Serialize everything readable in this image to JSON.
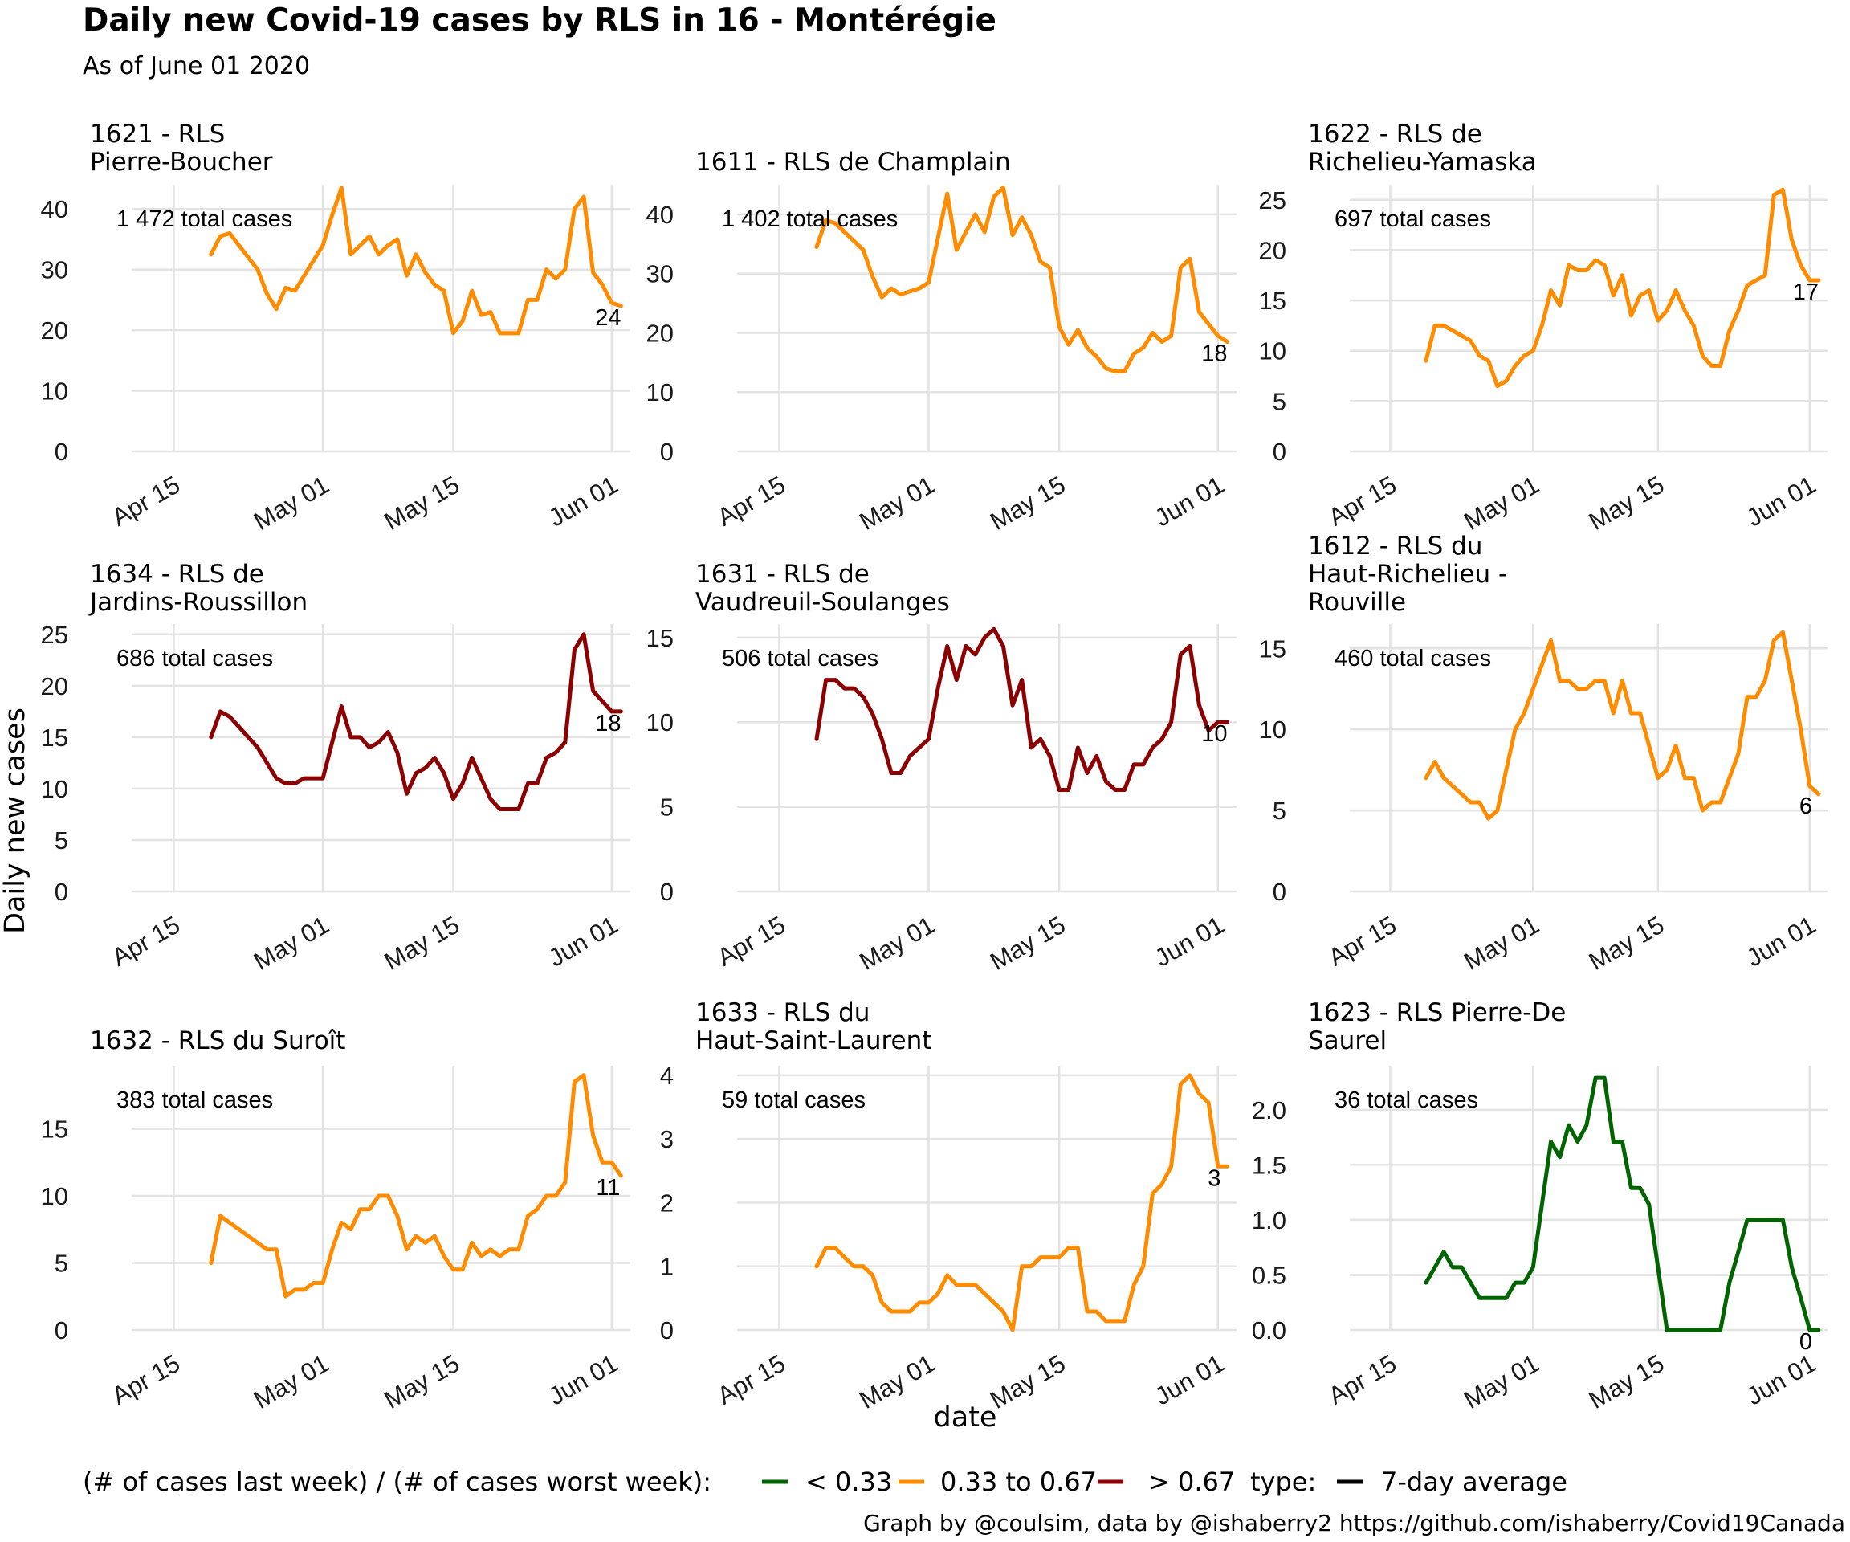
{
  "title": "Daily new Covid-19 cases by RLS in 16 - Montérégie",
  "subtitle": "As of June 01 2020",
  "ylabel": "Daily new cases",
  "xlabel": "date",
  "caption": "Graph by @coulsim, data by @ishaberry2 https://github.com/ishaberry/Covid19Canada",
  "legend": {
    "ratio_title": "(# of cases last week) / (# of cases worst week):",
    "items": [
      {
        "label": "< 0.33",
        "color": "#006400"
      },
      {
        "label": "0.33 to 0.67",
        "color": "#FF8C00"
      },
      {
        "label": "> 0.67",
        "color": "#8B0000"
      }
    ],
    "type_title": "type:",
    "type_items": [
      {
        "label": "7-day average",
        "color": "#000000"
      }
    ]
  },
  "chart_data": [
    {
      "type": "line",
      "panel_title": [
        "1621 - RLS",
        "Pierre-Boucher"
      ],
      "color": "#FF8C00",
      "total_label": "1 472 total cases",
      "end_label": "24",
      "x_start": "2020-04-19",
      "x_ticks": [
        "Apr 15",
        "May 01",
        "May 15",
        "Jun 01"
      ],
      "x_range": [
        "2020-04-11",
        "2020-06-03"
      ],
      "ylim": [
        0,
        44
      ],
      "y_ticks": [
        0,
        10,
        20,
        30,
        40
      ],
      "values": [
        32.5,
        35.5,
        36,
        34,
        32,
        30,
        26,
        23.5,
        27,
        26.5,
        29,
        31.5,
        34,
        39,
        43.5,
        32.5,
        34,
        35.5,
        32.5,
        34,
        35,
        29,
        32.5,
        29.5,
        27.5,
        26.5,
        19.5,
        21.5,
        26.5,
        22.5,
        23,
        19.5,
        19.5,
        19.5,
        25,
        25,
        30,
        28.5,
        30,
        40,
        42,
        29.5,
        27.5,
        24.5,
        24
      ]
    },
    {
      "type": "line",
      "panel_title": [
        "1611 - RLS de Champlain"
      ],
      "color": "#FF8C00",
      "total_label": "1 402 total cases",
      "end_label": "18",
      "x_start": "2020-04-19",
      "x_ticks": [
        "Apr 15",
        "May 01",
        "May 15",
        "Jun 01"
      ],
      "x_range": [
        "2020-04-11",
        "2020-06-03"
      ],
      "ylim": [
        0,
        45
      ],
      "y_ticks": [
        0,
        10,
        20,
        30,
        40
      ],
      "values": [
        34.5,
        39,
        38.5,
        37,
        35.5,
        34,
        29.5,
        26,
        27.5,
        26.5,
        27,
        27.5,
        28.5,
        36,
        43.5,
        34,
        37,
        40,
        37,
        43,
        44.5,
        36.5,
        39.5,
        36.5,
        32,
        31,
        21,
        18,
        20.5,
        17.5,
        16,
        14,
        13.5,
        13.5,
        16.5,
        17.5,
        20,
        18.5,
        19.5,
        31,
        32.5,
        23.5,
        21.5,
        19.5,
        18.5
      ]
    },
    {
      "type": "line",
      "panel_title": [
        "1622 - RLS de",
        "Richelieu-Yamaska"
      ],
      "color": "#FF8C00",
      "total_label": "697 total cases",
      "end_label": "17",
      "x_start": "2020-04-19",
      "x_ticks": [
        "Apr 15",
        "May 01",
        "May 15",
        "Jun 01"
      ],
      "x_range": [
        "2020-04-11",
        "2020-06-03"
      ],
      "ylim": [
        0,
        26.5
      ],
      "y_ticks": [
        0,
        5,
        10,
        15,
        20,
        25
      ],
      "values": [
        9,
        12.5,
        12.5,
        12,
        11.5,
        11,
        9.5,
        9,
        6.5,
        7,
        8.5,
        9.5,
        10,
        12.5,
        16,
        14.5,
        18.5,
        18,
        18,
        19,
        18.5,
        15.5,
        17.5,
        13.5,
        15.5,
        16,
        13,
        14,
        16,
        14,
        12.5,
        9.5,
        8.5,
        8.5,
        12,
        14,
        16.5,
        17,
        17.5,
        25.5,
        26,
        21,
        18.5,
        17,
        17
      ]
    },
    {
      "type": "line",
      "panel_title": [
        "1634 - RLS de",
        "Jardins-Roussillon"
      ],
      "color": "#8B0000",
      "total_label": "686 total cases",
      "end_label": "18",
      "x_start": "2020-04-19",
      "x_ticks": [
        "Apr 15",
        "May 01",
        "May 15",
        "Jun 01"
      ],
      "x_range": [
        "2020-04-11",
        "2020-06-03"
      ],
      "ylim": [
        0,
        26
      ],
      "y_ticks": [
        0,
        5,
        10,
        15,
        20,
        25
      ],
      "values": [
        15,
        17.5,
        17,
        16,
        15,
        14,
        12.5,
        11,
        10.5,
        10.5,
        11,
        11,
        11,
        14.5,
        18,
        15,
        15,
        14,
        14.5,
        15.5,
        13.5,
        9.5,
        11.5,
        12,
        13,
        11.5,
        9,
        10.5,
        13,
        11,
        9,
        8,
        8,
        8,
        10.5,
        10.5,
        13,
        13.5,
        14.5,
        23.5,
        25,
        19.5,
        18.5,
        17.5,
        17.5
      ]
    },
    {
      "type": "line",
      "panel_title": [
        "1631 - RLS de",
        "Vaudreuil-Soulanges"
      ],
      "color": "#8B0000",
      "total_label": "506 total cases",
      "end_label": "10",
      "x_start": "2020-04-19",
      "x_ticks": [
        "Apr 15",
        "May 01",
        "May 15",
        "Jun 01"
      ],
      "x_range": [
        "2020-04-11",
        "2020-06-03"
      ],
      "ylim": [
        0,
        15.8
      ],
      "y_ticks": [
        0,
        5,
        10,
        15
      ],
      "values": [
        9,
        12.5,
        12.5,
        12,
        12,
        11.5,
        10.5,
        9,
        7,
        7,
        8,
        8.5,
        9,
        12,
        14.5,
        12.5,
        14.5,
        14,
        15,
        15.5,
        14.5,
        11,
        12.5,
        8.5,
        9,
        8,
        6,
        6,
        8.5,
        7,
        8,
        6.5,
        6,
        6,
        7.5,
        7.5,
        8.5,
        9,
        10,
        14,
        14.5,
        11,
        9.5,
        10,
        10
      ]
    },
    {
      "type": "line",
      "panel_title": [
        "1612 - RLS du",
        "Haut-Richelieu -",
        "Rouville"
      ],
      "color": "#FF8C00",
      "total_label": "460 total cases",
      "end_label": "6",
      "x_start": "2020-04-19",
      "x_ticks": [
        "Apr 15",
        "May 01",
        "May 15",
        "Jun 01"
      ],
      "x_range": [
        "2020-04-11",
        "2020-06-03"
      ],
      "ylim": [
        0,
        16.5
      ],
      "y_ticks": [
        0,
        5,
        10,
        15
      ],
      "values": [
        7,
        8,
        7,
        6.5,
        6,
        5.5,
        5.5,
        4.5,
        5,
        7.5,
        10,
        11,
        12.5,
        14,
        15.5,
        13,
        13,
        12.5,
        12.5,
        13,
        13,
        11,
        13,
        11,
        11,
        9,
        7,
        7.5,
        9,
        7,
        7,
        5,
        5.5,
        5.5,
        7,
        8.5,
        12,
        12,
        13,
        15.5,
        16,
        13,
        10,
        6.5,
        6
      ]
    },
    {
      "type": "line",
      "panel_title": [
        "1632 - RLS du Suroît"
      ],
      "color": "#FF8C00",
      "total_label": "383 total cases",
      "end_label": "11",
      "x_start": "2020-04-19",
      "x_ticks": [
        "Apr 15",
        "May 01",
        "May 15",
        "Jun 01"
      ],
      "x_range": [
        "2020-04-11",
        "2020-06-03"
      ],
      "ylim": [
        0,
        19.7
      ],
      "y_ticks": [
        0,
        5,
        10,
        15
      ],
      "values": [
        5,
        8.5,
        8,
        7.5,
        7,
        6.5,
        6,
        6,
        2.5,
        3,
        3,
        3.5,
        3.5,
        6,
        8,
        7.5,
        9,
        9,
        10,
        10,
        8.5,
        6,
        7,
        6.5,
        7,
        5.5,
        4.5,
        4.5,
        6.5,
        5.5,
        6,
        5.5,
        6,
        6,
        8.5,
        9,
        10,
        10,
        11,
        18.5,
        19,
        14.5,
        12.5,
        12.5,
        11.5
      ]
    },
    {
      "type": "line",
      "panel_title": [
        "1633 - RLS du",
        "Haut-Saint-Laurent"
      ],
      "color": "#FF8C00",
      "total_label": "59 total cases",
      "end_label": "3",
      "x_start": "2020-04-19",
      "x_ticks": [
        "Apr 15",
        "May 01",
        "May 15",
        "Jun 01"
      ],
      "x_range": [
        "2020-04-11",
        "2020-06-03"
      ],
      "ylim": [
        0,
        4.15
      ],
      "y_ticks": [
        0,
        1,
        2,
        3,
        4
      ],
      "values": [
        1,
        1.29,
        1.29,
        1.14,
        1,
        1,
        0.86,
        0.43,
        0.29,
        0.29,
        0.29,
        0.43,
        0.43,
        0.57,
        0.86,
        0.71,
        0.71,
        0.71,
        0.57,
        0.43,
        0.29,
        0,
        1,
        1,
        1.14,
        1.14,
        1.14,
        1.29,
        1.29,
        0.29,
        0.29,
        0.14,
        0.14,
        0.14,
        0.71,
        1,
        2.14,
        2.29,
        2.57,
        3.86,
        4,
        3.71,
        3.57,
        2.57,
        2.57
      ]
    },
    {
      "type": "line",
      "panel_title": [
        "1623 - RLS Pierre-De",
        "Saurel"
      ],
      "color": "#006400",
      "total_label": "36 total cases",
      "end_label": "0",
      "x_start": "2020-04-19",
      "x_ticks": [
        "Apr 15",
        "May 01",
        "May 15",
        "Jun 01"
      ],
      "x_range": [
        "2020-04-11",
        "2020-06-03"
      ],
      "ylim": [
        0,
        2.4
      ],
      "y_ticks": [
        0.0,
        0.5,
        1.0,
        1.5,
        2.0
      ],
      "values": [
        0.43,
        0.57,
        0.71,
        0.57,
        0.57,
        0.43,
        0.29,
        0.29,
        0.29,
        0.29,
        0.43,
        0.43,
        0.57,
        1.14,
        1.71,
        1.57,
        1.86,
        1.71,
        1.86,
        2.29,
        2.29,
        1.71,
        1.71,
        1.29,
        1.29,
        1.14,
        0.57,
        0,
        0,
        0,
        0,
        0,
        0,
        0,
        0.43,
        0.71,
        1,
        1,
        1,
        1,
        1,
        0.57,
        0.29,
        0,
        0
      ]
    }
  ]
}
